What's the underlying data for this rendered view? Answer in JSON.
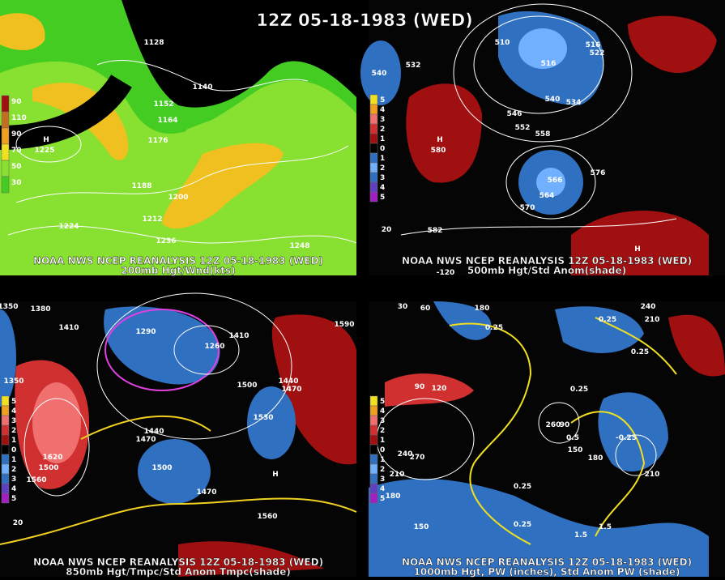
{
  "title": "12Z 05-18-1983 (WED)",
  "panels": [
    {
      "caption": "NOAA NWS NCEP REANALYSIS 12Z 05-18-1983 (WED)",
      "subcaption": "200mb Hgt/Wnd(kts)",
      "legend": [
        "90",
        "110",
        "90",
        "70",
        "50",
        "30"
      ],
      "contour_labels": [
        "1128",
        "1140",
        "1152",
        "1164",
        "1176",
        "1188",
        "1200",
        "1212",
        "1224",
        "1236",
        "1248",
        "H",
        "1225"
      ]
    },
    {
      "caption": "NOAA NWS NCEP REANALYSIS 12Z 05-18-1983 (WED)",
      "subcaption": "500mb Hgt/Std Anom(shade)",
      "legend": [
        "5",
        "4",
        "3",
        "2",
        "1",
        "0",
        "1",
        "2",
        "3",
        "4",
        "5"
      ],
      "contour_labels": [
        "532",
        "540",
        "510",
        "516",
        "516",
        "522",
        "546",
        "540",
        "534",
        "552",
        "558",
        "576",
        "566",
        "564",
        "570",
        "582",
        "H",
        "580",
        "H",
        "20",
        "-120"
      ]
    },
    {
      "caption": "NOAA NWS NCEP REANALYSIS 12Z 05-18-1983 (WED)",
      "subcaption": "850mb Hgt/Tmpc/Std Anom Tmpc(shade)",
      "legend": [
        "5",
        "4",
        "3",
        "2",
        "1",
        "0",
        "1",
        "2",
        "3",
        "4",
        "5"
      ],
      "contour_labels": [
        "1350",
        "1380",
        "1410",
        "1290",
        "1260",
        "1410",
        "1350",
        "1500",
        "1440",
        "1470",
        "1620",
        "1500",
        "1560",
        "1440",
        "1470",
        "1530",
        "1500",
        "1470",
        "1560",
        "1590",
        "20",
        "H"
      ]
    },
    {
      "caption": "NOAA NWS NCEP REANALYSIS 12Z 05-18-1983 (WED)",
      "subcaption": "1000mb Hgt, PW (inches), Std Anom PW (shade)",
      "legend": [
        "5",
        "4",
        "3",
        "2",
        "1",
        "0",
        "1",
        "2",
        "3",
        "4",
        "5"
      ],
      "contour_labels": [
        "30",
        "60",
        "180",
        "240",
        "210",
        "90",
        "120",
        "0.25",
        "0.25",
        "0.25",
        "0.25",
        "260",
        "90",
        "0.5",
        "-0.25",
        "150",
        "180",
        "240",
        "270",
        "210",
        "180",
        "210",
        "0.25",
        "0.25",
        "1.5",
        "1.5",
        "150"
      ]
    }
  ]
}
